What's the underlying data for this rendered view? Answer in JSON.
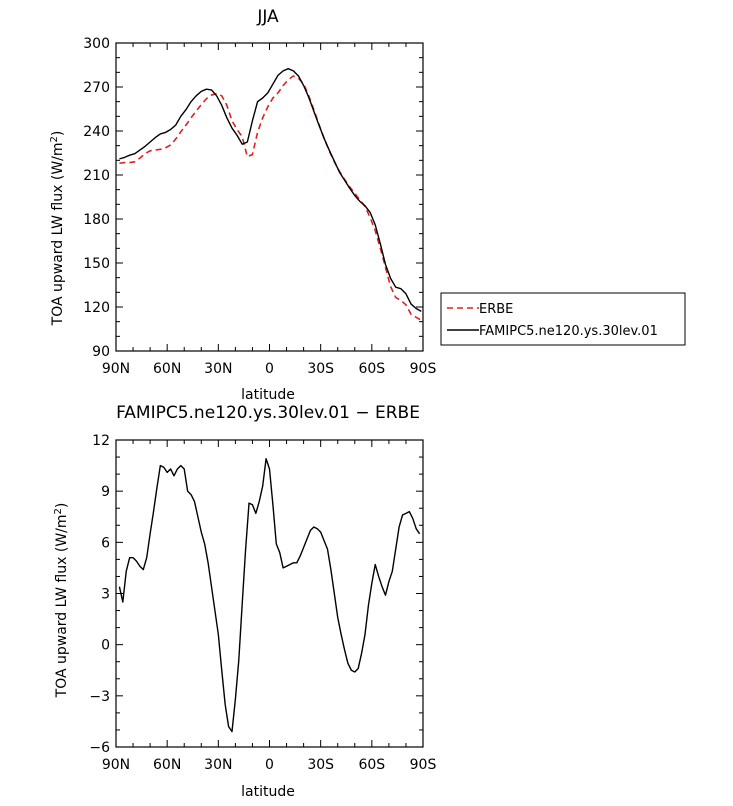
{
  "chart_data": [
    {
      "type": "line",
      "title": "JJA",
      "xlabel": "latitude",
      "ylabel": "TOA upward LW flux (W/m²)",
      "ylabel_parts": {
        "main": "TOA upward LW flux (W/m",
        "sup": "2",
        "close": ")"
      },
      "xlim": [
        -90,
        90
      ],
      "ylim": [
        90,
        300
      ],
      "x_ticks": [
        -90,
        -60,
        -30,
        0,
        30,
        60,
        90
      ],
      "x_tick_labels": [
        "90N",
        "60N",
        "30N",
        "0",
        "30S",
        "60S",
        "90S"
      ],
      "y_ticks": [
        90,
        120,
        150,
        180,
        210,
        240,
        270,
        300
      ],
      "y_tick_labels": [
        "90",
        "120",
        "150",
        "180",
        "210",
        "240",
        "270",
        "300"
      ],
      "grid": false,
      "legend": "right",
      "x": [
        -88,
        -85,
        -82,
        -79,
        -76,
        -73,
        -70,
        -67,
        -64,
        -61,
        -58,
        -55,
        -52,
        -49,
        -46,
        -43,
        -40,
        -37,
        -34,
        -31,
        -28,
        -25,
        -22,
        -19,
        -16,
        -13,
        -10,
        -7,
        -4,
        -1,
        2,
        5,
        8,
        11,
        14,
        17,
        20,
        23,
        26,
        29,
        32,
        35,
        38,
        41,
        44,
        47,
        50,
        53,
        56,
        59,
        62,
        65,
        68,
        71,
        74,
        77,
        80,
        83,
        86,
        89
      ],
      "series": [
        {
          "name": "ERBE",
          "color": "#e02020",
          "dash": "dashed",
          "values": [
            218,
            218.5,
            218.5,
            219,
            221.5,
            224.5,
            226.5,
            227,
            227.5,
            228.5,
            230.5,
            234.5,
            239.5,
            244,
            249,
            253.5,
            258,
            262,
            264.5,
            265.5,
            264,
            257.5,
            247,
            241,
            236,
            222.5,
            224,
            239,
            249,
            256.5,
            262.5,
            266,
            271,
            275,
            277.5,
            276,
            272,
            264,
            254.5,
            244.5,
            235,
            226.5,
            219,
            212.5,
            207,
            202,
            197.5,
            193,
            188.5,
            181,
            172,
            160,
            147,
            134,
            126.5,
            124.5,
            121.5,
            115,
            113,
            111
          ]
        },
        {
          "name": "FAMIPC5.ne120.ys.30lev.01",
          "color": "#000000",
          "dash": "solid",
          "values": [
            221,
            222,
            223.5,
            224.5,
            227,
            229.5,
            232.5,
            235.5,
            238,
            239,
            241,
            244,
            250,
            254.5,
            260,
            264,
            267,
            268.5,
            268,
            264,
            257.5,
            249,
            242,
            237,
            231,
            232.5,
            247,
            260,
            262.5,
            266,
            272,
            278,
            281,
            282.5,
            281,
            277.5,
            271,
            263,
            253.5,
            244,
            235,
            227,
            219.5,
            212,
            206.5,
            201,
            196,
            192,
            189,
            184.5,
            176,
            163,
            149,
            139.5,
            133.5,
            132.5,
            129,
            122,
            119,
            117
          ]
        }
      ]
    },
    {
      "type": "line",
      "title": "FAMIPC5.ne120.ys.30lev.01 − ERBE",
      "xlabel": "latitude",
      "ylabel": "TOA upward LW flux (W/m²)",
      "ylabel_parts": {
        "main": "TOA upward LW flux (W/m",
        "sup": "2",
        "close": ")"
      },
      "xlim": [
        -90,
        90
      ],
      "ylim": [
        -6,
        12
      ],
      "x_ticks": [
        -90,
        -60,
        -30,
        0,
        30,
        60,
        90
      ],
      "x_tick_labels": [
        "90N",
        "60N",
        "30N",
        "0",
        "30S",
        "60S",
        "90S"
      ],
      "y_ticks": [
        -6,
        -3,
        0,
        3,
        6,
        9,
        12
      ],
      "y_tick_labels": [
        "−6",
        "−3",
        "0",
        "3",
        "6",
        "9",
        "12"
      ],
      "grid": false,
      "x": [
        -88,
        -86,
        -84,
        -82,
        -80,
        -78,
        -76,
        -74,
        -72,
        -70,
        -68,
        -66,
        -64,
        -62,
        -60,
        -58,
        -56,
        -54,
        -52,
        -50,
        -48,
        -46,
        -44,
        -42,
        -40,
        -38,
        -36,
        -34,
        -32,
        -30,
        -28,
        -26,
        -24,
        -22,
        -20,
        -18,
        -16,
        -14,
        -12,
        -10,
        -8,
        -6,
        -4,
        -2,
        0,
        2,
        4,
        6,
        8,
        10,
        12,
        14,
        16,
        18,
        20,
        22,
        24,
        26,
        28,
        30,
        32,
        34,
        36,
        38,
        40,
        42,
        44,
        46,
        48,
        50,
        52,
        54,
        56,
        58,
        60,
        62,
        64,
        66,
        68,
        70,
        72,
        74,
        76,
        78,
        80,
        82,
        84,
        86,
        88
      ],
      "series": [
        {
          "name": "",
          "color": "#000000",
          "dash": "solid",
          "values": [
            3.4,
            2.5,
            4.3,
            5.1,
            5.1,
            4.9,
            4.6,
            4.4,
            5.1,
            6.5,
            7.8,
            9.2,
            10.5,
            10.4,
            10.1,
            10.3,
            9.9,
            10.3,
            10.5,
            10.3,
            9,
            8.8,
            8.4,
            7.5,
            6.6,
            5.9,
            4.8,
            3.4,
            2,
            0.6,
            -1.5,
            -3.5,
            -4.8,
            -5.1,
            -3.2,
            -0.9,
            2.4,
            5.6,
            8.3,
            8.2,
            7.7,
            8.4,
            9.3,
            10.9,
            10.3,
            8.2,
            5.9,
            5.4,
            4.5,
            4.6,
            4.7,
            4.8,
            4.8,
            5.2,
            5.7,
            6.2,
            6.7,
            6.9,
            6.8,
            6.6,
            6.1,
            5.6,
            4.4,
            3,
            1.6,
            0.6,
            -0.3,
            -1.1,
            -1.5,
            -1.6,
            -1.4,
            -0.5,
            0.6,
            2.3,
            3.6,
            4.7,
            4,
            3.4,
            2.9,
            3.7,
            4.3,
            5.6,
            6.9,
            7.6,
            7.7,
            7.8,
            7.4,
            6.8,
            6.5
          ]
        }
      ]
    }
  ]
}
